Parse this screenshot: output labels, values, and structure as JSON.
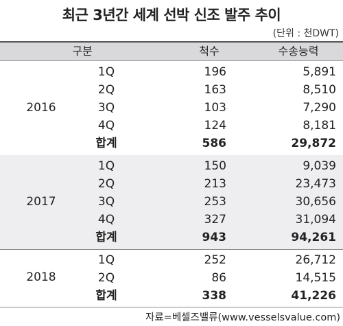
{
  "title": "최근 3년간 세계 선박 신조 발주 추이",
  "unit": "(단위 : 천DWT)",
  "header": {
    "category": "구분",
    "count": "척수",
    "capacity": "수송능력"
  },
  "groups": [
    {
      "year": "2016",
      "rows": [
        {
          "q": "1Q",
          "count": "196",
          "capacity": "5,891"
        },
        {
          "q": "2Q",
          "count": "163",
          "capacity": "8,510"
        },
        {
          "q": "3Q",
          "count": "103",
          "capacity": "7,290"
        },
        {
          "q": "4Q",
          "count": "124",
          "capacity": "8,181"
        },
        {
          "q": "합계",
          "count": "586",
          "capacity": "29,872"
        }
      ]
    },
    {
      "year": "2017",
      "rows": [
        {
          "q": "1Q",
          "count": "150",
          "capacity": "9,039"
        },
        {
          "q": "2Q",
          "count": "213",
          "capacity": "23,473"
        },
        {
          "q": "3Q",
          "count": "253",
          "capacity": "30,656"
        },
        {
          "q": "4Q",
          "count": "327",
          "capacity": "31,094"
        },
        {
          "q": "합계",
          "count": "943",
          "capacity": "94,261"
        }
      ]
    },
    {
      "year": "2018",
      "rows": [
        {
          "q": "1Q",
          "count": "252",
          "capacity": "26,712"
        },
        {
          "q": "2Q",
          "count": "86",
          "capacity": "14,515"
        },
        {
          "q": "합계",
          "count": "338",
          "capacity": "41,226"
        }
      ]
    }
  ],
  "source": "자료=베셀즈밸류(www.vesselsvalue.com)"
}
